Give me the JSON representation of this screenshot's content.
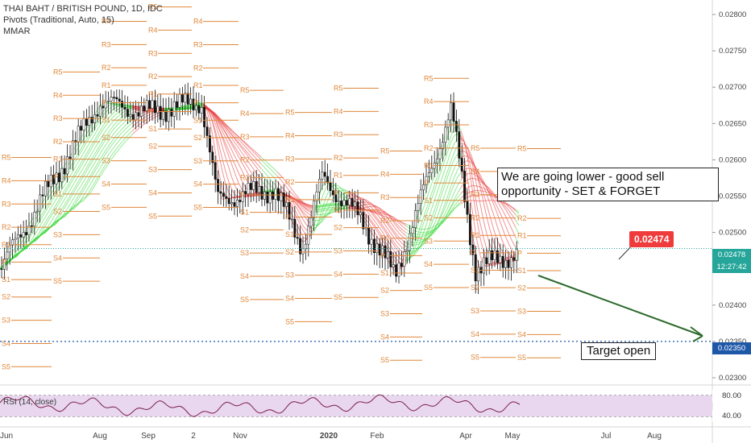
{
  "legend": {
    "symbol": "THAI BAHT / BRITISH POUND, 1D, IDC",
    "pivots": "Pivots (Traditional, Auto, 15)",
    "mmar": "MMAR",
    "rsi": "RSI (14, close)"
  },
  "annotations": {
    "note_text": "We are going lower - good sell opportunity - SET & FORGET",
    "target_text": "Target open",
    "price_badge": "0.02474"
  },
  "axis_tags": {
    "last": "0.02478",
    "countdown": "12:27:42",
    "target": "0.02350",
    "rsi_top": "80.00",
    "rsi_mid": "40.00"
  },
  "colors": {
    "bull_candle": "#26a69a",
    "bear_candle": "#ef5350",
    "ribbon_up": "#3cd83c",
    "ribbon_down": "#e83a3a",
    "pivot": "#e0873a",
    "arrow": "#2e6b2e",
    "rsi_line": "#7b1f4a",
    "rsi_band": "#e9d7f0"
  },
  "chart_data": {
    "type": "candlestick",
    "title": "THAI BAHT / BRITISH POUND, 1D, IDC",
    "x_ticks": [
      "Jun",
      "Aug",
      "Sep",
      "2",
      "Nov",
      "2020",
      "Feb",
      "Apr",
      "May",
      "Jul",
      "Aug"
    ],
    "y_ticks": [
      "0.02800",
      "0.02750",
      "0.02700",
      "0.02650",
      "0.02600",
      "0.02550",
      "0.02500",
      "0.02450",
      "0.02400",
      "0.02350",
      "0.02300"
    ],
    "ylim": [
      0.0229,
      0.0282
    ],
    "price_path": [
      [
        "Jun",
        0.0245
      ],
      [
        "Jul",
        0.0256
      ],
      [
        "Aug",
        0.0268
      ],
      [
        "Sep",
        0.02665
      ],
      [
        "2",
        0.0268
      ],
      [
        "Oct",
        0.02545
      ],
      [
        "Nov",
        0.0256
      ],
      [
        "Dec",
        0.0248
      ],
      [
        "2020",
        0.02575
      ],
      [
        "Jan",
        0.02515
      ],
      [
        "Feb",
        0.0244
      ],
      [
        "Mar",
        0.0267
      ],
      [
        "Apr",
        0.0245
      ],
      [
        "May",
        0.02474
      ]
    ],
    "last_price": 0.02478,
    "target_price": 0.0235,
    "pivot_labels": [
      "R5",
      "R4",
      "R3",
      "R2",
      "R1",
      "P",
      "S1",
      "S2",
      "S3",
      "S4",
      "S5"
    ],
    "rsi": {
      "levels": [
        80.0,
        40.0
      ],
      "last": 48
    }
  }
}
